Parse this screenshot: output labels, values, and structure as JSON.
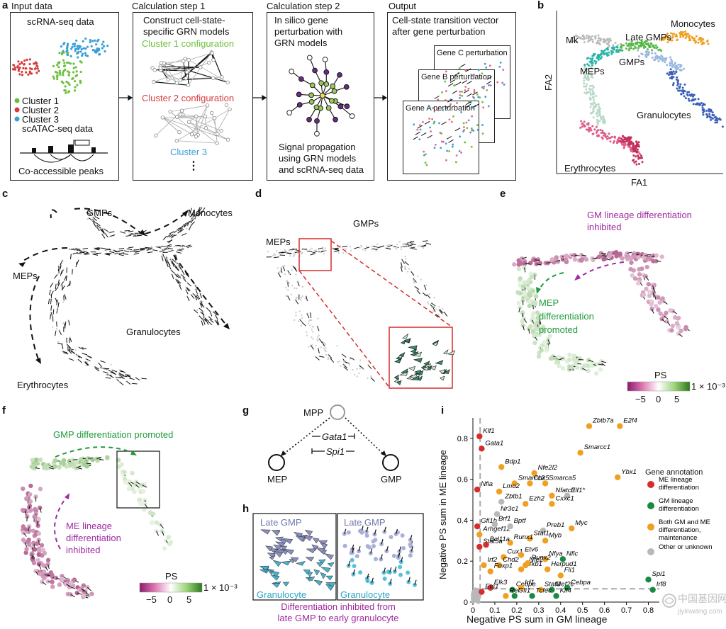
{
  "panel_letters": {
    "a": "a",
    "b": "b",
    "c": "c",
    "d": "d",
    "e": "e",
    "f": "f",
    "g": "g",
    "h": "h",
    "i": "i"
  },
  "panel_a": {
    "headers": [
      "Input data",
      "Calculation step 1",
      "Calculation step 2",
      "Output"
    ],
    "input": {
      "title": "scRNA-seq data",
      "legend": [
        "Cluster 1",
        "Cluster 2",
        "Cluster 3"
      ],
      "atac": "scATAC-seq data",
      "peaks": "Co-accessible peaks"
    },
    "step1": {
      "text": [
        "Construct cell-state-",
        "specific GRN models"
      ],
      "c1": "Cluster 1 configuration",
      "c2": "Cluster 2 configuration",
      "c3": "Cluster 3",
      "dots": "⋮"
    },
    "step2": {
      "text": [
        "In silico gene",
        "perturbation with",
        "GRN models"
      ],
      "bottom": [
        "Signal propagation",
        "using GRN models",
        "and scRNA-seq data"
      ]
    },
    "output": {
      "text": [
        "Cell-state transition vector",
        "after gene perturbation"
      ],
      "cards": [
        "Gene C perturbation",
        "Gene B perturbation",
        "Gene A perturbation"
      ]
    },
    "colors": {
      "cluster1": "#6cbf3c",
      "cluster2": "#d83a3a",
      "cluster3": "#3a9fd8"
    }
  },
  "panel_b": {
    "xlabel": "FA1",
    "ylabel": "FA2",
    "labels": [
      "Mk",
      "Monocytes",
      "Late GMPs",
      "GMPs",
      "MEPs",
      "Granulocytes",
      "Erythrocytes"
    ]
  },
  "panel_c": {
    "labels": [
      "GMPs",
      "Monocytes",
      "MEPs",
      "Granulocytes",
      "Erythrocytes"
    ]
  },
  "panel_d": {
    "labels": [
      "MEPs",
      "GMPs"
    ]
  },
  "panel_e": {
    "title": [
      "GM lineage differentiation",
      "inhibited"
    ],
    "mep": [
      "MEP",
      "differentiation",
      "promoted"
    ],
    "colorbar": {
      "label": "PS",
      "ticks": [
        "−5",
        "0",
        "5"
      ],
      "scale": "1 × 10⁻³"
    }
  },
  "panel_f": {
    "title": "GMP differentiation promoted",
    "me": [
      "ME lineage",
      "differentiation",
      "inhibited"
    ],
    "colorbar": {
      "label": "PS",
      "ticks": [
        "−5",
        "0",
        "5"
      ],
      "scale": "1 × 10⁻³"
    }
  },
  "panel_g": {
    "mpp": "MPP",
    "gata1": "Gata1",
    "spi1": "Spi1",
    "mep": "MEP",
    "gmp": "GMP"
  },
  "panel_h": {
    "late": "Late GMP",
    "gran": "Granulocyte",
    "caption": [
      "Differentiation inhibited from",
      "late GMP to early granulocyte"
    ]
  },
  "panel_i": {
    "legend_title": "Gene annotation",
    "legend": [
      "ME lineage differentiation",
      "GM lineage differentiation",
      "Both GM and ME differentiation, maintenance",
      "Other or unknown"
    ],
    "colors": {
      "ME": "#d62c2c",
      "GM": "#1a8a43",
      "Both": "#f0a020",
      "Other": "#b8b8b8"
    }
  },
  "watermark": {
    "cn": "中国基因网",
    "url": "jiyinwang.com"
  },
  "chart_data": {
    "type": "scatter",
    "xlabel": "Negative PS sum in GM lineage",
    "ylabel": "Negative PS sum in ME lineage",
    "xlim": [
      0,
      0.85
    ],
    "ylim": [
      0,
      0.9
    ],
    "xticks": [
      0,
      0.1,
      0.2,
      0.3,
      0.4,
      0.5,
      0.6,
      0.7,
      0.8
    ],
    "yticks": [
      0,
      0.2,
      0.4,
      0.6,
      0.8
    ],
    "xtick_labels": [
      "0",
      "0.1",
      "0.2",
      "0.3",
      "0.4",
      "0.5",
      "0.6",
      "0.7",
      "0.8"
    ],
    "ytick_labels": [
      "0",
      "0.2",
      "0.4",
      "0.6",
      "0.8"
    ],
    "thresholds": {
      "x": 0.033,
      "y": 0.065
    },
    "points": [
      {
        "label": "Klf1",
        "x": 0.03,
        "y": 0.81,
        "cat": "ME"
      },
      {
        "label": "Gata1",
        "x": 0.04,
        "y": 0.75,
        "cat": "ME"
      },
      {
        "label": "Nfia",
        "x": 0.02,
        "y": 0.55,
        "cat": "ME"
      },
      {
        "label": "Gfi1b",
        "x": 0.02,
        "y": 0.37,
        "cat": "ME"
      },
      {
        "label": "Arhgef12",
        "x": 0.03,
        "y": 0.33,
        "cat": "Both"
      },
      {
        "label": "Stat5a",
        "x": 0.03,
        "y": 0.27,
        "cat": "ME"
      },
      {
        "label": "Zbtb7a",
        "x": 0.53,
        "y": 0.86,
        "cat": "Both"
      },
      {
        "label": "E2f4",
        "x": 0.67,
        "y": 0.86,
        "cat": "Both"
      },
      {
        "label": "Smarcc1",
        "x": 0.49,
        "y": 0.73,
        "cat": "Both"
      },
      {
        "label": "Ybx1",
        "x": 0.66,
        "y": 0.61,
        "cat": "Both"
      },
      {
        "label": "Bdp1",
        "x": 0.13,
        "y": 0.66,
        "cat": "Both"
      },
      {
        "label": "Nfe2l2",
        "x": 0.28,
        "y": 0.63,
        "cat": "Both"
      },
      {
        "label": "Smarca5",
        "x": 0.33,
        "y": 0.58,
        "cat": "Both"
      },
      {
        "label": "Smarcc2",
        "x": 0.19,
        "y": 0.58,
        "cat": "Both"
      },
      {
        "label": "Cbx5",
        "x": 0.26,
        "y": 0.58,
        "cat": "Both"
      },
      {
        "label": "Lmo2",
        "x": 0.12,
        "y": 0.54,
        "cat": "Both"
      },
      {
        "label": "Nfatc3",
        "x": 0.36,
        "y": 0.52,
        "cat": "Both"
      },
      {
        "label": "Elf1*",
        "x": 0.43,
        "y": 0.52,
        "cat": "Other"
      },
      {
        "label": "Zbtb1",
        "x": 0.13,
        "y": 0.49,
        "cat": "Other"
      },
      {
        "label": "Ezh2",
        "x": 0.24,
        "y": 0.48,
        "cat": "Both"
      },
      {
        "label": "Cxxc1",
        "x": 0.36,
        "y": 0.48,
        "cat": "Both"
      },
      {
        "label": "Nr3c1",
        "x": 0.11,
        "y": 0.43,
        "cat": "Other"
      },
      {
        "label": "Brf1",
        "x": 0.1,
        "y": 0.38,
        "cat": "Other"
      },
      {
        "label": "Bptf",
        "x": 0.17,
        "y": 0.37,
        "cat": "Other"
      },
      {
        "label": "Preb1",
        "x": 0.32,
        "y": 0.35,
        "cat": "Other"
      },
      {
        "label": "Myc",
        "x": 0.45,
        "y": 0.36,
        "cat": "Both"
      },
      {
        "label": "Stat1",
        "x": 0.26,
        "y": 0.31,
        "cat": "Both"
      },
      {
        "label": "Myb",
        "x": 0.33,
        "y": 0.3,
        "cat": "Both"
      },
      {
        "label": "Runx1",
        "x": 0.17,
        "y": 0.29,
        "cat": "Both"
      },
      {
        "label": "Bcl11a",
        "x": 0.06,
        "y": 0.28,
        "cat": "ME"
      },
      {
        "label": "Cux1",
        "x": 0.14,
        "y": 0.22,
        "cat": "Both"
      },
      {
        "label": "Etv6",
        "x": 0.22,
        "y": 0.23,
        "cat": "Both"
      },
      {
        "label": "Nfya",
        "x": 0.33,
        "y": 0.21,
        "cat": "Both"
      },
      {
        "label": "Nfic",
        "x": 0.41,
        "y": 0.21,
        "cat": "GM"
      },
      {
        "label": "Chd2",
        "x": 0.12,
        "y": 0.18,
        "cat": "Both"
      },
      {
        "label": "Nfkb1",
        "x": 0.22,
        "y": 0.16,
        "cat": "Both"
      },
      {
        "label": "Nfe2",
        "x": 0.24,
        "y": 0.18,
        "cat": "Both"
      },
      {
        "label": "Runx2",
        "x": 0.25,
        "y": 0.19,
        "cat": "Both"
      },
      {
        "label": "Herpud1",
        "x": 0.34,
        "y": 0.16,
        "cat": "Both"
      },
      {
        "label": "Irf2",
        "x": 0.05,
        "y": 0.18,
        "cat": "Both"
      },
      {
        "label": "Foxp1",
        "x": 0.08,
        "y": 0.15,
        "cat": "Both"
      },
      {
        "label": "Fli1",
        "x": 0.4,
        "y": 0.13,
        "cat": "Both"
      },
      {
        "label": "Spi1",
        "x": 0.8,
        "y": 0.11,
        "cat": "GM"
      },
      {
        "label": "Irf8",
        "x": 0.82,
        "y": 0.06,
        "cat": "GM"
      },
      {
        "label": "Elk3",
        "x": 0.08,
        "y": 0.07,
        "cat": "ME"
      },
      {
        "label": "Cebpe",
        "x": 0.18,
        "y": 0.06,
        "cat": "GM"
      },
      {
        "label": "Irf1",
        "x": 0.22,
        "y": 0.07,
        "cat": "Both"
      },
      {
        "label": "Stat3",
        "x": 0.31,
        "y": 0.06,
        "cat": "Both"
      },
      {
        "label": "Mef2c",
        "x": 0.36,
        "y": 0.06,
        "cat": "GM"
      },
      {
        "label": "Cebpa",
        "x": 0.43,
        "y": 0.07,
        "cat": "GM"
      },
      {
        "label": "Ets1",
        "x": 0.04,
        "y": 0.05,
        "cat": "ME"
      },
      {
        "label": "Rel",
        "x": 0.15,
        "y": 0.03,
        "cat": "Both"
      },
      {
        "label": "Gfi1",
        "x": 0.19,
        "y": 0.03,
        "cat": "GM"
      },
      {
        "label": "Tcfec",
        "x": 0.27,
        "y": 0.03,
        "cat": "GM"
      },
      {
        "label": "Klf4",
        "x": 0.38,
        "y": 0.03,
        "cat": "GM"
      }
    ]
  }
}
